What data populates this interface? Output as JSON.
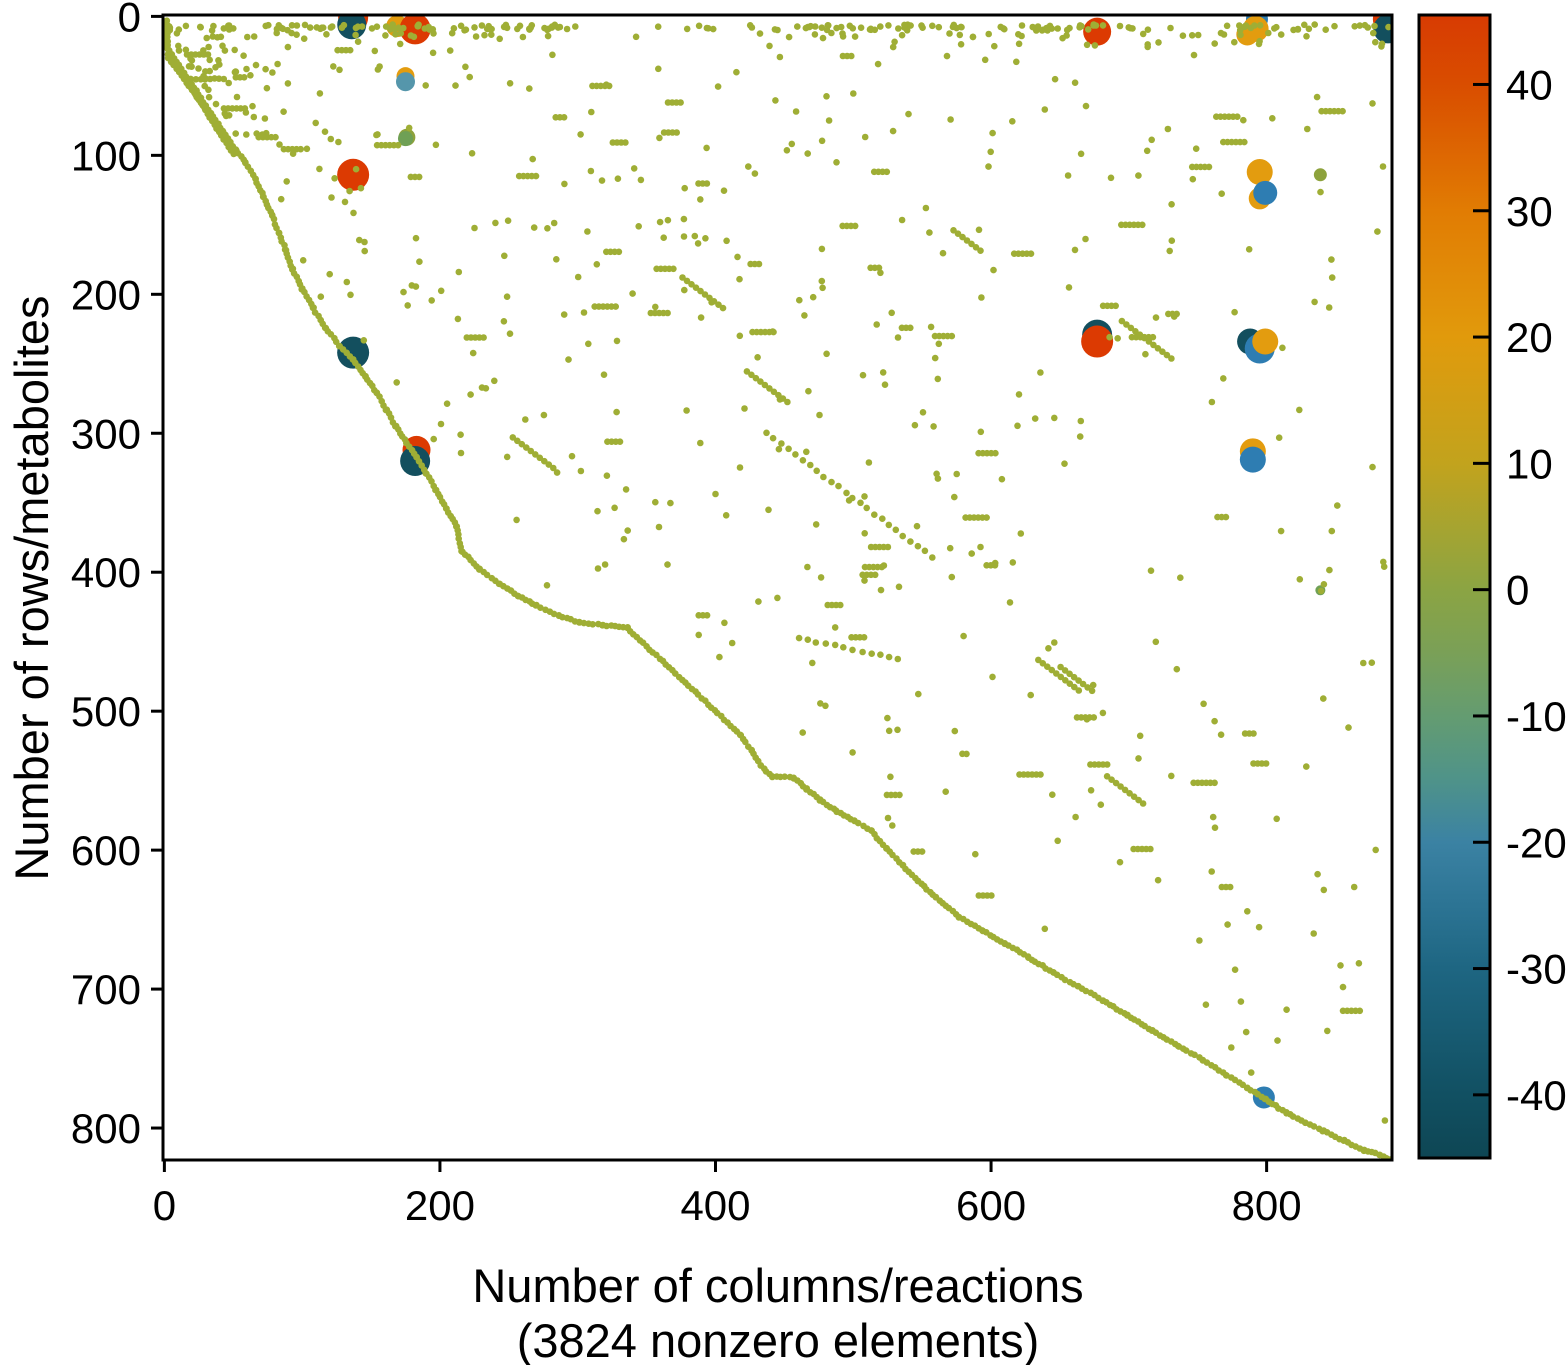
{
  "chart_data": {
    "type": "scatter",
    "subtype": "sparsity-spy-plot",
    "xlabel_line1": "Number of columns/reactions",
    "xlabel_line2": "(3824 nonzero elements)",
    "ylabel": "Number of rows/metabolites",
    "nonzero_elements": 3824,
    "x_ticks": [
      0,
      200,
      400,
      600,
      800
    ],
    "y_ticks": [
      0,
      100,
      200,
      300,
      400,
      500,
      600,
      700,
      800
    ],
    "xlim": [
      -1,
      891
    ],
    "ylim": [
      -1,
      823
    ],
    "y_axis_reversed": true,
    "grid": false,
    "dot_color": "#9fae35",
    "dot_radius": 3.3,
    "colorbar": {
      "min": -45.0,
      "max": 45.5,
      "ticks": [
        40,
        30,
        20,
        10,
        0,
        -10,
        -20,
        -30,
        -40
      ],
      "stops": [
        {
          "v": 45.5,
          "c": "#d83b02"
        },
        {
          "v": 40,
          "c": "#d94d00"
        },
        {
          "v": 30,
          "c": "#e17c03"
        },
        {
          "v": 20,
          "c": "#e19a0c"
        },
        {
          "v": 10,
          "c": "#c2a31d"
        },
        {
          "v": 0,
          "c": "#8ba443"
        },
        {
          "v": -5,
          "c": "#7aa057"
        },
        {
          "v": -10,
          "c": "#649c71"
        },
        {
          "v": -15,
          "c": "#4f9389"
        },
        {
          "v": -20,
          "c": "#3b82a3"
        },
        {
          "v": -25,
          "c": "#2c7494"
        },
        {
          "v": -30,
          "c": "#1e6682"
        },
        {
          "v": -40,
          "c": "#115062"
        },
        {
          "v": -45,
          "c": "#0e4654"
        }
      ]
    },
    "bubble_palette": {
      "red": "#dc3a02",
      "orange": "#e39c0f",
      "blue": "#2e7db2",
      "lightblue": "#5596ab",
      "teal": "#134f5e",
      "green": "#6fa055",
      "olive": "#9fae35",
      "olivedark": "#8da23c"
    },
    "bubbles": [
      {
        "x": 137,
        "y": 1,
        "r": 15,
        "color": "red"
      },
      {
        "x": 136,
        "y": 6,
        "r": 14.5,
        "color": "teal"
      },
      {
        "x": 169,
        "y": 7,
        "r": 11,
        "color": "orange"
      },
      {
        "x": 182,
        "y": 9,
        "r": 15.5,
        "color": "red"
      },
      {
        "x": 184,
        "y": 7,
        "r": 3.5,
        "color": "olive"
      },
      {
        "x": 175,
        "y": 43,
        "r": 9,
        "color": "orange"
      },
      {
        "x": 175,
        "y": 47,
        "r": 9.5,
        "color": "lightblue"
      },
      {
        "x": 176,
        "y": 87,
        "r": 8.5,
        "color": "olivedark"
      },
      {
        "x": 175,
        "y": 88,
        "r": 7.5,
        "color": "green"
      },
      {
        "x": 137,
        "y": 114,
        "r": 16,
        "color": "red"
      },
      {
        "x": 137,
        "y": 242,
        "r": 16,
        "color": "teal"
      },
      {
        "x": 183,
        "y": 312,
        "r": 14,
        "color": "red"
      },
      {
        "x": 182,
        "y": 320,
        "r": 15,
        "color": "teal"
      },
      {
        "x": 677,
        "y": 11,
        "r": 14,
        "color": "red"
      },
      {
        "x": 677,
        "y": 229,
        "r": 15,
        "color": "teal"
      },
      {
        "x": 677,
        "y": 234,
        "r": 16,
        "color": "red"
      },
      {
        "x": 793,
        "y": 2,
        "r": 11,
        "color": "blue"
      },
      {
        "x": 786,
        "y": 13,
        "r": 11,
        "color": "orange"
      },
      {
        "x": 792,
        "y": 9,
        "r": 13,
        "color": "orange"
      },
      {
        "x": 795,
        "y": 112,
        "r": 13,
        "color": "orange"
      },
      {
        "x": 795,
        "y": 131,
        "r": 11,
        "color": "orange"
      },
      {
        "x": 799,
        "y": 127,
        "r": 12,
        "color": "blue"
      },
      {
        "x": 788,
        "y": 234,
        "r": 13,
        "color": "teal"
      },
      {
        "x": 795,
        "y": 239,
        "r": 15,
        "color": "blue"
      },
      {
        "x": 799,
        "y": 234,
        "r": 13,
        "color": "orange"
      },
      {
        "x": 790,
        "y": 313,
        "r": 13,
        "color": "orange"
      },
      {
        "x": 790,
        "y": 319,
        "r": 13,
        "color": "blue"
      },
      {
        "x": 888,
        "y": 2,
        "r": 15,
        "color": "red"
      },
      {
        "x": 888,
        "y": 9,
        "r": 14.5,
        "color": "teal"
      },
      {
        "x": 798,
        "y": 778,
        "r": 11,
        "color": "blue"
      },
      {
        "x": 839,
        "y": 114,
        "r": 6.5,
        "color": "olivedark"
      },
      {
        "x": 839,
        "y": 413,
        "r": 5,
        "color": "green"
      }
    ],
    "boundary_polyline": [
      [
        2,
        3
      ],
      [
        3,
        30
      ],
      [
        46,
        88
      ],
      [
        52,
        96
      ],
      [
        59,
        105
      ],
      [
        66,
        117
      ],
      [
        72,
        130
      ],
      [
        78,
        143
      ],
      [
        83,
        156
      ],
      [
        88,
        168
      ],
      [
        93,
        182
      ],
      [
        100,
        196
      ],
      [
        108,
        210
      ],
      [
        117,
        224
      ],
      [
        127,
        237
      ],
      [
        137,
        247
      ],
      [
        146,
        259
      ],
      [
        154,
        271
      ],
      [
        161,
        283
      ],
      [
        168,
        295
      ],
      [
        176,
        307
      ],
      [
        183,
        317
      ],
      [
        190,
        329
      ],
      [
        197,
        341
      ],
      [
        205,
        354
      ],
      [
        212,
        367
      ],
      [
        216,
        385
      ],
      [
        229,
        398
      ],
      [
        243,
        408
      ],
      [
        257,
        417
      ],
      [
        270,
        424
      ],
      [
        286,
        431
      ],
      [
        301,
        436
      ],
      [
        318,
        438
      ],
      [
        336,
        440
      ],
      [
        418,
        517
      ],
      [
        426,
        528
      ],
      [
        433,
        539
      ],
      [
        441,
        547
      ],
      [
        457,
        548
      ],
      [
        466,
        556
      ],
      [
        476,
        564
      ],
      [
        488,
        572
      ],
      [
        501,
        579
      ],
      [
        513,
        586
      ],
      [
        524,
        599
      ],
      [
        536,
        611
      ],
      [
        547,
        622
      ],
      [
        560,
        634
      ],
      [
        577,
        648
      ],
      [
        594,
        658
      ],
      [
        610,
        667
      ],
      [
        627,
        677
      ],
      [
        645,
        688
      ],
      [
        663,
        698
      ],
      [
        681,
        708
      ],
      [
        699,
        719
      ],
      [
        717,
        730
      ],
      [
        736,
        741
      ],
      [
        754,
        751
      ],
      [
        771,
        762
      ],
      [
        786,
        771
      ],
      [
        799,
        779
      ],
      [
        814,
        789
      ],
      [
        828,
        796
      ],
      [
        841,
        802
      ],
      [
        856,
        809
      ],
      [
        871,
        816
      ],
      [
        882,
        819
      ],
      [
        890,
        823
      ]
    ],
    "staircase_segments": [
      [
        [
          1,
          5
        ],
        [
          1,
          22
        ]
      ],
      [
        [
          2,
          22
        ],
        [
          46,
          88
        ]
      ],
      [
        [
          16,
          45
        ],
        [
          43,
          45
        ]
      ],
      [
        [
          16,
          46
        ],
        [
          50,
          99
        ]
      ]
    ],
    "diagonal_dash_segments": [
      [
        [
          437,
          300
        ],
        [
          557,
          389
        ]
      ],
      [
        [
          460,
          447
        ],
        [
          533,
          463
        ]
      ]
    ],
    "scatter_gen": {
      "seed": 7,
      "band_rows": [
        {
          "y": 8,
          "count": 200,
          "jitter": 3,
          "gap": [
            310,
            425
          ],
          "gap_keep": 0.25
        },
        {
          "y": 14,
          "count": 60,
          "jitter": 3,
          "gap": [
            300,
            430
          ],
          "gap_keep": 0.2
        },
        {
          "y": 20,
          "count": 28,
          "jitter": 3,
          "gap": [
            260,
            430
          ],
          "gap_keep": 0.15
        }
      ],
      "random_dots": {
        "count": 430,
        "y_min": 24,
        "boundary_margin": 10
      },
      "horizontal_dashes": {
        "count": 60,
        "min_dots": 3,
        "max_dots": 6
      },
      "diagonal_runs": {
        "count": 8,
        "min_dots": 5,
        "max_dots": 12
      }
    }
  }
}
